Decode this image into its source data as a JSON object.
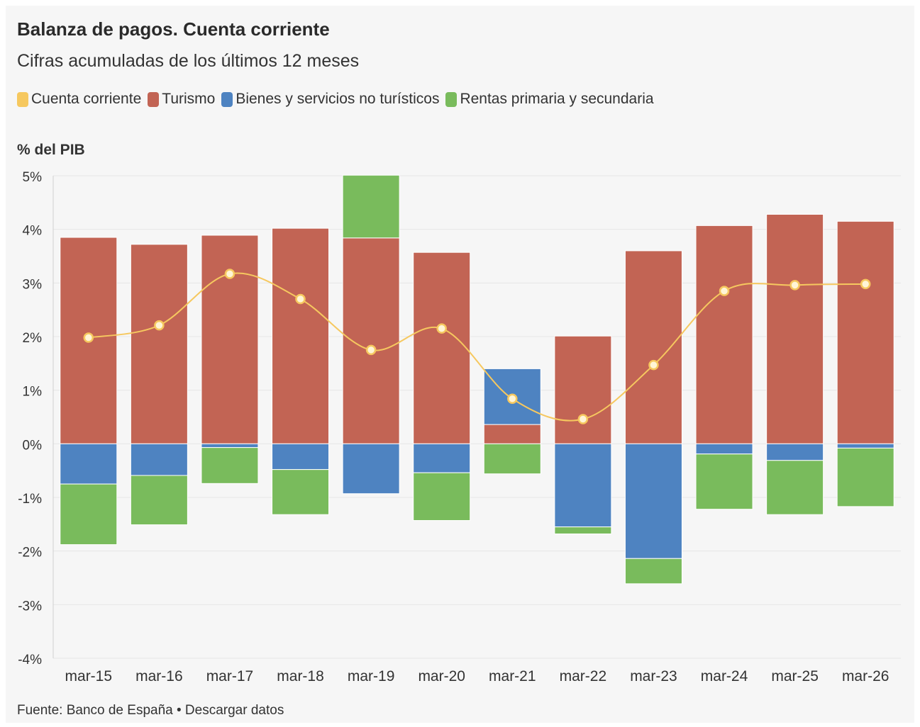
{
  "header": {
    "title": "Balanza de pagos. Cuenta corriente",
    "subtitle": "Cifras acumuladas de los últimos 12 meses"
  },
  "legend": [
    {
      "label": "Cuenta corriente",
      "color": "#f6c85f"
    },
    {
      "label": "Turismo",
      "color": "#c26454"
    },
    {
      "label": "Bienes y servicios no turísticos",
      "color": "#4e83c1"
    },
    {
      "label": "Rentas primaria y secundaria",
      "color": "#79bb5c"
    }
  ],
  "footer": {
    "source": "Fuente: Banco de España • Descargar datos"
  },
  "chart_data": {
    "type": "bar",
    "stacked": true,
    "ylabel": "% del PIB",
    "ylim": [
      -4,
      5
    ],
    "yticks": [
      "5%",
      "4%",
      "3%",
      "2%",
      "1%",
      "0%",
      "-1%",
      "-2%",
      "-3%",
      "-4%"
    ],
    "grid": true,
    "categories": [
      "mar-15",
      "mar-16",
      "mar-17",
      "mar-18",
      "mar-19",
      "mar-20",
      "mar-21",
      "mar-22",
      "mar-23",
      "mar-24",
      "mar-25",
      "mar-26"
    ],
    "series": [
      {
        "name": "Turismo",
        "kind": "bar",
        "color": "#c26454",
        "values": [
          3.85,
          3.72,
          3.89,
          4.02,
          3.84,
          3.57,
          0.36,
          2.01,
          3.6,
          4.07,
          4.28,
          4.15
        ]
      },
      {
        "name": "Bienes y servicios no turísticos",
        "kind": "bar",
        "color": "#4e83c1",
        "values": [
          -0.75,
          -0.59,
          -0.07,
          -0.48,
          -0.93,
          -0.54,
          1.04,
          -1.55,
          -2.14,
          -0.19,
          -0.31,
          -0.08
        ]
      },
      {
        "name": "Rentas primaria y secundaria",
        "kind": "bar",
        "color": "#79bb5c",
        "values": [
          -1.13,
          -0.92,
          -0.67,
          -0.84,
          1.17,
          -0.89,
          -0.56,
          -0.13,
          -0.47,
          -1.03,
          -1.01,
          -1.09
        ]
      },
      {
        "name": "Cuenta corriente",
        "kind": "line",
        "color": "#f6c85f",
        "values": [
          1.98,
          2.21,
          3.17,
          2.7,
          1.75,
          2.15,
          0.84,
          0.46,
          1.47,
          2.85,
          2.96,
          2.98
        ]
      }
    ]
  }
}
